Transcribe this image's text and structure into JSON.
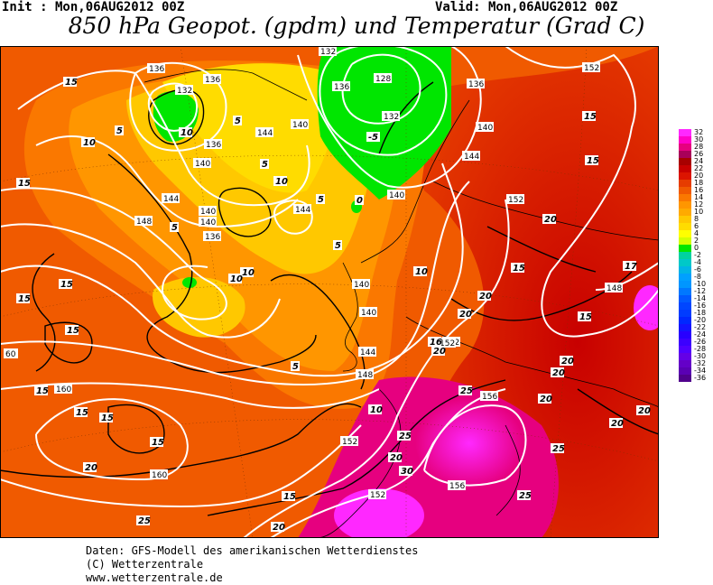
{
  "header": {
    "init": "Init : Mon,06AUG2012 00Z",
    "valid": "Valid: Mon,06AUG2012 00Z",
    "title": "850 hPa Geopot. (gpdm) und Temperatur (Grad C)"
  },
  "map": {
    "geopotential_labels": [
      "136",
      "132",
      "136",
      "128",
      "132",
      "152",
      "136",
      "132",
      "136",
      "140",
      "144",
      "140",
      "140",
      "136",
      "144",
      "140",
      "144",
      "140",
      "144",
      "152",
      "148",
      "140",
      "136",
      "140",
      "148",
      "140",
      "144",
      "148",
      "152",
      "160",
      "160",
      "152",
      "152",
      "152",
      "156",
      "156",
      "60"
    ],
    "temperature_labels": [
      "15",
      "10",
      "5",
      "10",
      "5",
      "5",
      "10",
      "-5",
      "0",
      "5",
      "5",
      "15",
      "15",
      "10",
      "5",
      "10",
      "15",
      "5",
      "15",
      "15",
      "15",
      "10",
      "15",
      "15",
      "10",
      "15",
      "15",
      "20",
      "20",
      "15",
      "16",
      "20",
      "17",
      "20",
      "20",
      "20",
      "20",
      "25",
      "20",
      "15",
      "20",
      "25",
      "25",
      "30",
      "20",
      "15",
      "25",
      "25",
      "20",
      "20"
    ]
  },
  "legend": {
    "values": [
      "32",
      "30",
      "28",
      "26",
      "24",
      "22",
      "20",
      "18",
      "16",
      "14",
      "12",
      "10",
      "8",
      "6",
      "4",
      "2",
      "0",
      "-2",
      "-4",
      "-6",
      "-8",
      "-10",
      "-12",
      "-14",
      "-16",
      "-18",
      "-20",
      "-22",
      "-24",
      "-26",
      "-28",
      "-30",
      "-32",
      "-34",
      "-36"
    ],
    "colors": [
      "#ff28ff",
      "#ff00c8",
      "#e6007f",
      "#a8005a",
      "#a80000",
      "#c80000",
      "#dc1400",
      "#e63c00",
      "#f05a00",
      "#fa7800",
      "#ff9600",
      "#ffaa00",
      "#ffc800",
      "#ffdc00",
      "#ffff00",
      "#d2ff00",
      "#00e600",
      "#00d2a0",
      "#00c8c8",
      "#00b4e6",
      "#00a0ff",
      "#0096ff",
      "#0078ff",
      "#005aff",
      "#0046ff",
      "#003cff",
      "#0028ff",
      "#1414ff",
      "#2800ff",
      "#3c00ff",
      "#5000ff",
      "#6400e6",
      "#6400c8",
      "#5a00b4",
      "#50008c"
    ]
  },
  "footer": {
    "line1": "Daten: GFS-Modell des amerikanischen Wetterdienstes",
    "line2": "(C) Wetterzentrale",
    "line3": "www.wetterzentrale.de"
  }
}
